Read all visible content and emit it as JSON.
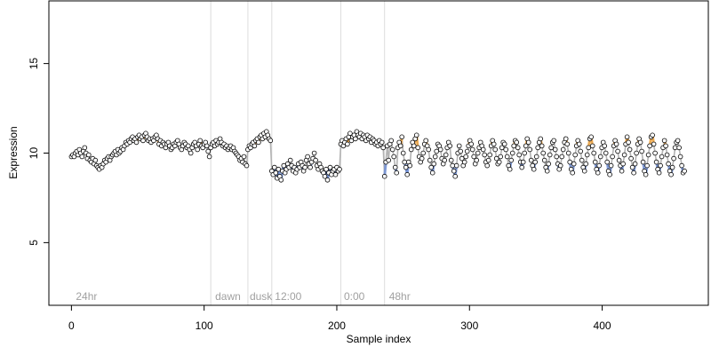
{
  "chart_data": {
    "type": "scatter",
    "xlabel": "Sample index",
    "ylabel": "Expression",
    "xlim": [
      -17,
      480
    ],
    "ylim": [
      1.5,
      18.5
    ],
    "x_ticks": [
      0,
      100,
      200,
      300,
      400
    ],
    "y_ticks": [
      5,
      10,
      15
    ],
    "grid": false,
    "vlines": [
      105,
      133,
      151,
      203,
      236
    ],
    "annotations": [
      {
        "text": "24hr",
        "x": 2
      },
      {
        "text": "dawn",
        "x": 107
      },
      {
        "text": "dusk",
        "x": 133
      },
      {
        "text": "12:00",
        "x": 152
      },
      {
        "text": "0:00",
        "x": 204
      },
      {
        "text": "48hr",
        "x": 238
      }
    ],
    "colors": {
      "line": "#b3b3b3",
      "high": "#f2a33a",
      "low": "#6f8fd8",
      "point_fill": "#ffffff",
      "point_edge": "#000000"
    },
    "segments": [
      {
        "name": "24hr",
        "x_start": 0,
        "x_end": 104,
        "values": [
          9.8,
          9.9,
          9.8,
          10.0,
          10.1,
          9.9,
          10.2,
          10.0,
          9.8,
          10.1,
          10.3,
          10.0,
          9.7,
          9.9,
          9.6,
          9.5,
          9.7,
          9.4,
          9.6,
          9.3,
          9.2,
          9.1,
          9.3,
          9.2,
          9.4,
          9.6,
          9.5,
          9.7,
          9.8,
          9.6,
          9.8,
          9.9,
          10.0,
          10.1,
          9.9,
          10.2,
          10.0,
          10.1,
          10.3,
          10.2,
          10.4,
          10.6,
          10.5,
          10.7,
          10.6,
          10.8,
          10.9,
          10.7,
          10.8,
          10.6,
          10.9,
          11.0,
          10.8,
          10.9,
          10.7,
          11.0,
          11.1,
          10.9,
          10.7,
          10.8,
          10.6,
          10.8,
          10.7,
          10.9,
          11.0,
          10.8,
          10.5,
          10.7,
          10.4,
          10.6,
          10.5,
          10.3,
          10.5,
          10.6,
          10.4,
          10.2,
          10.3,
          10.5,
          10.4,
          10.6,
          10.7,
          10.5,
          10.3,
          10.2,
          10.4,
          10.6,
          10.5,
          10.3,
          10.4,
          10.2,
          10.0,
          10.3,
          10.5,
          10.6,
          10.4,
          10.2,
          10.5,
          10.7,
          10.4,
          10.3,
          10.5,
          10.6,
          10.4,
          10.1,
          9.8
        ]
      },
      {
        "name": "dawn",
        "x_start": 105,
        "x_end": 132,
        "values": [
          10.3,
          10.5,
          10.6,
          10.4,
          10.7,
          10.5,
          10.6,
          10.8,
          10.6,
          10.4,
          10.5,
          10.3,
          10.4,
          10.2,
          10.3,
          10.4,
          10.2,
          10.3,
          10.1,
          10.0,
          9.9,
          9.8,
          9.6,
          9.7,
          9.5,
          9.8,
          9.4,
          9.3
        ]
      },
      {
        "name": "dusk",
        "x_start": 133,
        "x_end": 150,
        "values": [
          10.2,
          10.4,
          10.3,
          10.5,
          10.6,
          10.4,
          10.7,
          10.8,
          10.6,
          10.9,
          11.0,
          10.8,
          11.1,
          10.9,
          11.2,
          11.0,
          10.8,
          10.7
        ]
      },
      {
        "name": "12:00",
        "x_start": 151,
        "x_end": 202,
        "values": [
          9.0,
          8.8,
          9.2,
          8.9,
          8.6,
          9.1,
          8.7,
          8.5,
          9.0,
          9.3,
          8.9,
          9.1,
          9.4,
          9.2,
          9.6,
          9.3,
          9.0,
          9.2,
          8.9,
          9.1,
          9.4,
          9.2,
          9.5,
          9.3,
          9.0,
          9.2,
          9.6,
          9.8,
          9.4,
          9.2,
          9.5,
          9.7,
          10.0,
          9.6,
          9.3,
          9.1,
          9.4,
          9.2,
          9.0,
          8.9,
          8.7,
          9.1,
          8.5,
          8.9,
          9.2,
          8.8,
          9.0,
          9.1,
          8.8,
          9.2,
          9.0,
          9.1
        ]
      },
      {
        "name": "0:00",
        "x_start": 203,
        "x_end": 235,
        "values": [
          10.5,
          10.7,
          10.4,
          10.6,
          10.8,
          10.5,
          10.9,
          11.1,
          10.7,
          10.9,
          11.0,
          10.8,
          11.2,
          11.0,
          10.9,
          11.1,
          10.8,
          11.0,
          10.9,
          10.7,
          11.0,
          10.8,
          10.9,
          10.6,
          10.8,
          10.7,
          10.5,
          10.6,
          10.4,
          10.7,
          10.5,
          10.6,
          10.3
        ]
      },
      {
        "name": "48hr",
        "x_start": 236,
        "x_end": 462,
        "values": [
          8.7,
          9.5,
          10.4,
          9.6,
          10.5,
          10.7,
          10.2,
          9.8,
          9.2,
          8.9,
          10.3,
          10.6,
          10.4,
          10.9,
          10.0,
          9.5,
          9.2,
          8.8,
          9.5,
          9.3,
          10.2,
          10.6,
          10.4,
          10.8,
          11.0,
          10.3,
          9.8,
          9.5,
          9.7,
          10.0,
          10.5,
          10.7,
          10.4,
          10.2,
          9.6,
          9.2,
          8.9,
          9.4,
          9.8,
          10.1,
          10.5,
          10.4,
          10.2,
          9.7,
          9.4,
          9.6,
          9.9,
          10.3,
          10.6,
          10.4,
          9.6,
          9.3,
          9.0,
          8.7,
          9.3,
          10.0,
          10.4,
          10.1,
          9.7,
          9.3,
          9.5,
          9.8,
          10.1,
          10.4,
          10.7,
          10.5,
          10.2,
          9.8,
          9.4,
          9.6,
          10.0,
          10.3,
          10.6,
          10.4,
          10.2,
          9.9,
          9.5,
          9.3,
          9.6,
          9.9,
          10.4,
          10.7,
          10.5,
          10.2,
          9.7,
          9.4,
          9.5,
          9.8,
          10.3,
          10.6,
          10.5,
          10.2,
          9.8,
          9.3,
          9.1,
          9.6,
          10.0,
          10.4,
          10.7,
          10.6,
          10.3,
          9.9,
          9.5,
          9.2,
          9.5,
          10.0,
          10.4,
          10.8,
          10.6,
          10.2,
          9.6,
          9.3,
          9.1,
          9.5,
          9.8,
          10.3,
          10.6,
          10.8,
          10.4,
          10.0,
          9.6,
          9.2,
          9.0,
          9.4,
          9.9,
          10.3,
          10.6,
          10.7,
          10.2,
          9.8,
          9.4,
          9.1,
          9.3,
          9.8,
          10.2,
          10.6,
          10.8,
          10.5,
          10.0,
          9.5,
          9.1,
          8.9,
          9.4,
          9.9,
          10.4,
          10.7,
          10.5,
          10.1,
          9.6,
          9.2,
          9.0,
          9.4,
          9.9,
          10.3,
          10.8,
          10.9,
          10.4,
          10.0,
          9.5,
          9.1,
          8.9,
          9.3,
          9.8,
          10.3,
          10.6,
          10.4,
          10.0,
          9.5,
          9.0,
          8.8,
          9.3,
          9.8,
          10.4,
          10.7,
          10.5,
          10.1,
          9.6,
          9.3,
          9.0,
          9.4,
          9.9,
          10.5,
          10.9,
          10.6,
          10.2,
          9.7,
          9.2,
          8.9,
          9.4,
          10.0,
          10.5,
          10.8,
          10.6,
          10.1,
          9.5,
          9.0,
          8.8,
          9.3,
          9.9,
          10.4,
          10.9,
          11.0,
          10.5,
          10.0,
          9.5,
          9.1,
          8.9,
          9.3,
          9.8,
          10.3,
          10.7,
          10.4,
          9.9,
          9.4,
          9.0,
          8.8,
          9.2,
          9.7,
          10.3,
          10.6,
          10.7,
          10.3,
          9.8,
          9.3,
          8.9,
          9.0
        ]
      }
    ]
  }
}
